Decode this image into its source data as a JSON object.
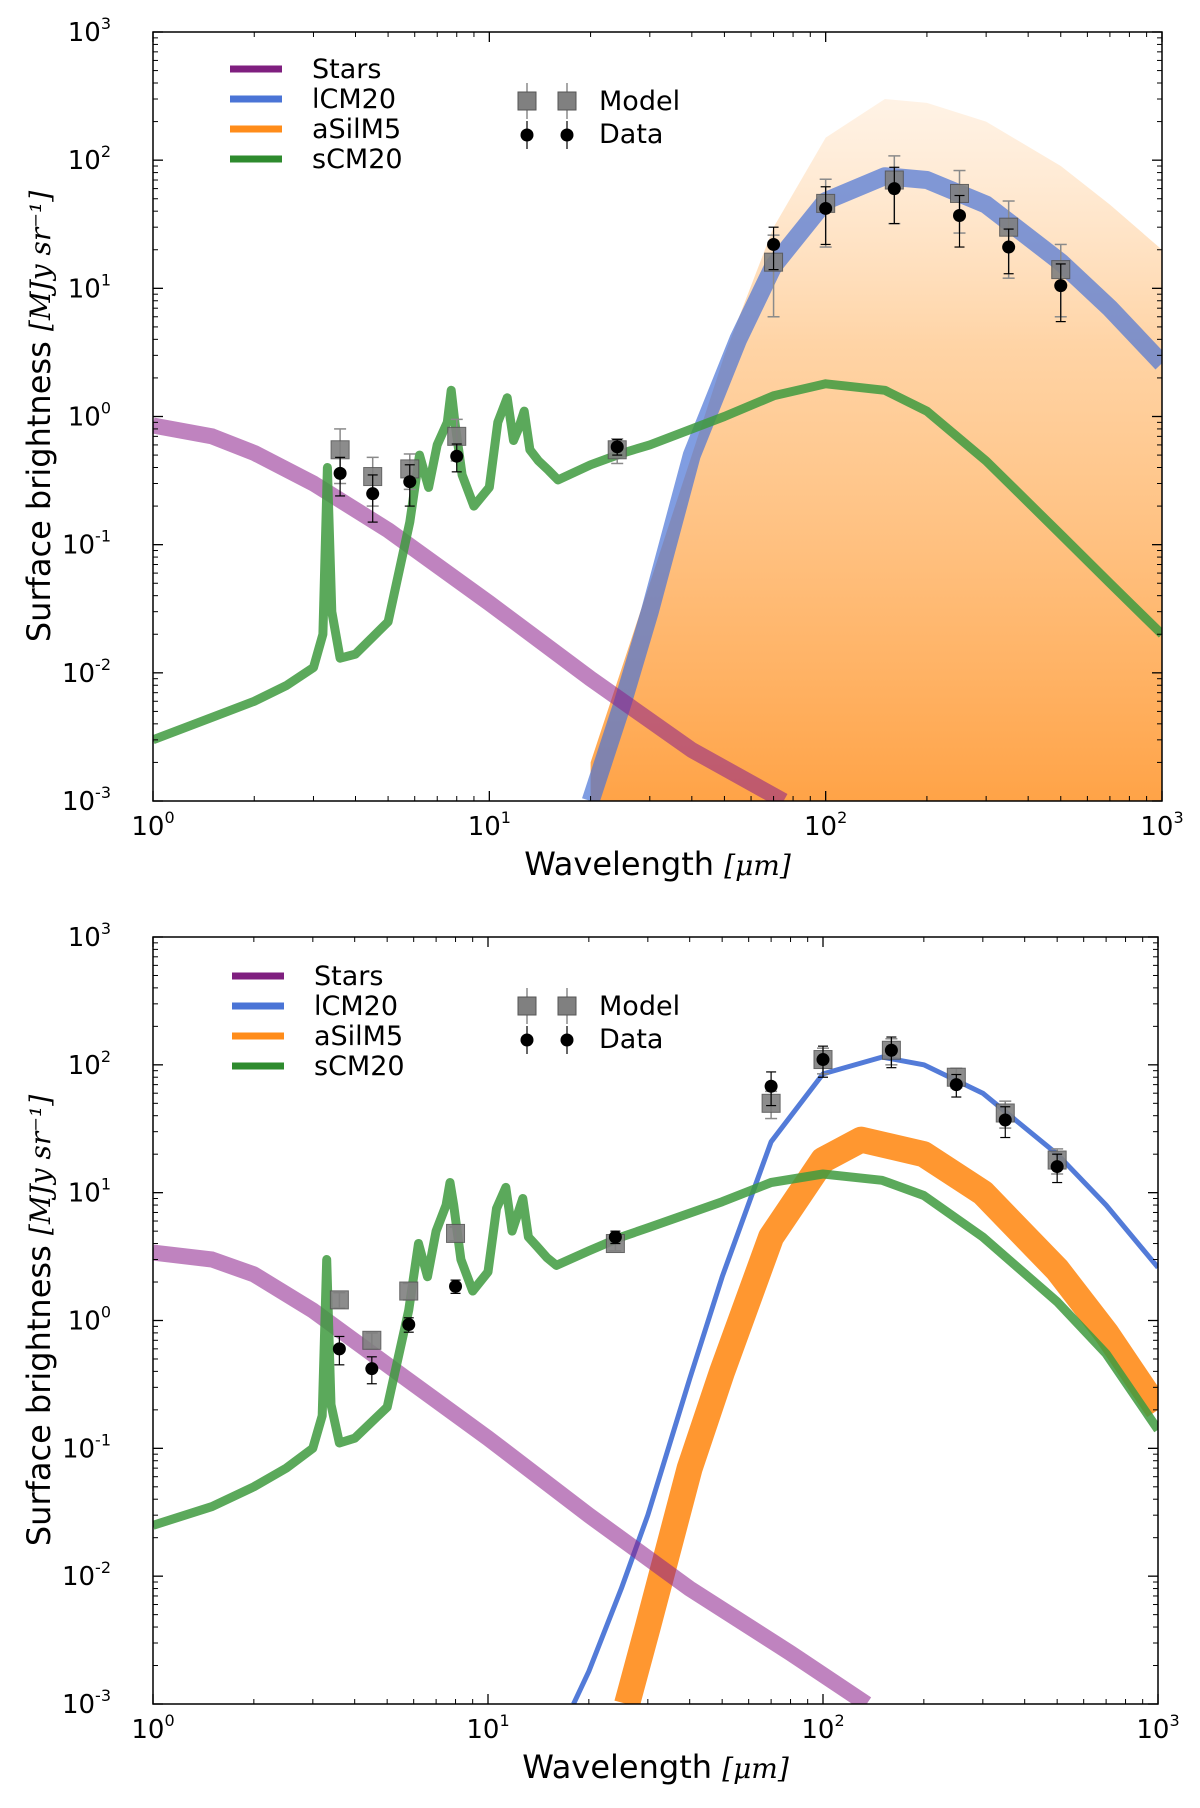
{
  "chart_data": [
    {
      "type": "line",
      "id": "top",
      "title": "",
      "xlabel": "Wavelength",
      "xunit": "[μm]",
      "ylabel": "Surface brightness",
      "yunit": "[MJy sr⁻¹]",
      "xscale": "log",
      "yscale": "log",
      "xlim": [
        1,
        1000
      ],
      "ylim": [
        0.001,
        1000
      ],
      "xticks": [
        {
          "base": "10",
          "exp": "0",
          "v": 1
        },
        {
          "base": "10",
          "exp": "1",
          "v": 10
        },
        {
          "base": "10",
          "exp": "2",
          "v": 100
        },
        {
          "base": "10",
          "exp": "3",
          "v": 1000
        }
      ],
      "yticks": [
        {
          "base": "10",
          "exp": "-3",
          "v": 0.001
        },
        {
          "base": "10",
          "exp": "-2",
          "v": 0.01
        },
        {
          "base": "10",
          "exp": "-1",
          "v": 0.1
        },
        {
          "base": "10",
          "exp": "0",
          "v": 1
        },
        {
          "base": "10",
          "exp": "1",
          "v": 10
        },
        {
          "base": "10",
          "exp": "2",
          "v": 100
        },
        {
          "base": "10",
          "exp": "3",
          "v": 1000
        }
      ],
      "legend_components": [
        {
          "name": "Stars",
          "color": "#7f1f7f"
        },
        {
          "name": "lCM20",
          "color": "#4a74d6"
        },
        {
          "name": "aSilM5",
          "color": "#ff8c1a"
        },
        {
          "name": "sCM20",
          "color": "#2e8b2e"
        }
      ],
      "legend_points": [
        {
          "name": "Model",
          "marker": "square"
        },
        {
          "name": "Data",
          "marker": "circle"
        }
      ],
      "series": [
        {
          "name": "Stars",
          "x": [
            1,
            1.5,
            2,
            3,
            5,
            10,
            20,
            40,
            75
          ],
          "y": [
            0.85,
            0.7,
            0.52,
            0.3,
            0.13,
            0.035,
            0.009,
            0.0025,
            0.001
          ]
        },
        {
          "name": "lCM20",
          "x": [
            20,
            25,
            30,
            40,
            55,
            70,
            100,
            150,
            200,
            300,
            500,
            700,
            1000
          ],
          "y": [
            0.001,
            0.006,
            0.03,
            0.5,
            4,
            15,
            48,
            75,
            70,
            45,
            16,
            7,
            2.6
          ]
        },
        {
          "name": "aSilM5",
          "x": [
            20,
            30,
            40,
            50,
            70,
            100,
            150,
            200,
            300,
            500,
            700,
            1000
          ],
          "y": [
            0.002,
            0.05,
            0.5,
            3,
            30,
            150,
            300,
            280,
            200,
            90,
            45,
            20
          ]
        },
        {
          "name": "sCM20",
          "x": [
            1,
            1.5,
            2,
            2.5,
            3,
            3.2,
            3.3,
            3.4,
            3.6,
            4,
            5,
            5.8,
            6.2,
            6.6,
            7.0,
            7.5,
            7.7,
            7.9,
            8.3,
            9,
            10,
            10.6,
            11.3,
            11.8,
            12.2,
            12.7,
            13.2,
            14,
            15,
            16,
            20,
            25,
            30,
            50,
            70,
            100,
            150,
            200,
            300,
            500,
            700,
            1000
          ],
          "y": [
            0.003,
            0.0045,
            0.006,
            0.008,
            0.011,
            0.02,
            0.4,
            0.03,
            0.013,
            0.014,
            0.025,
            0.15,
            0.5,
            0.28,
            0.6,
            0.9,
            1.6,
            0.9,
            0.35,
            0.2,
            0.28,
            0.9,
            1.4,
            0.65,
            0.8,
            1.1,
            0.55,
            0.45,
            0.38,
            0.32,
            0.42,
            0.52,
            0.6,
            1.0,
            1.45,
            1.8,
            1.6,
            1.1,
            0.45,
            0.12,
            0.05,
            0.02
          ]
        }
      ],
      "model_points": {
        "x": [
          3.6,
          4.5,
          5.8,
          8,
          24,
          70,
          100,
          160,
          250,
          350,
          500
        ],
        "y": [
          0.55,
          0.34,
          0.39,
          0.7,
          0.55,
          16,
          46,
          70,
          55,
          30,
          14
        ],
        "err": [
          0.25,
          0.14,
          0.12,
          0.25,
          0.12,
          10,
          25,
          38,
          28,
          18,
          8
        ]
      },
      "data_points": {
        "x": [
          3.6,
          4.5,
          5.8,
          8,
          24,
          70,
          100,
          160,
          250,
          350,
          500
        ],
        "y": [
          0.36,
          0.25,
          0.31,
          0.49,
          0.58,
          22,
          42,
          60,
          37,
          21,
          10.5
        ],
        "err": [
          0.12,
          0.1,
          0.11,
          0.12,
          0.08,
          8,
          20,
          28,
          16,
          8,
          5
        ]
      }
    },
    {
      "type": "line",
      "id": "bottom",
      "title": "",
      "xlabel": "Wavelength",
      "xunit": "[μm]",
      "ylabel": "Surface brightness",
      "yunit": "[MJy sr⁻¹]",
      "xscale": "log",
      "yscale": "log",
      "xlim": [
        1,
        1000
      ],
      "ylim": [
        0.001,
        1000
      ],
      "xticks": [
        {
          "base": "10",
          "exp": "0",
          "v": 1
        },
        {
          "base": "10",
          "exp": "1",
          "v": 10
        },
        {
          "base": "10",
          "exp": "2",
          "v": 100
        },
        {
          "base": "10",
          "exp": "3",
          "v": 1000
        }
      ],
      "yticks": [
        {
          "base": "10",
          "exp": "-3",
          "v": 0.001
        },
        {
          "base": "10",
          "exp": "-2",
          "v": 0.01
        },
        {
          "base": "10",
          "exp": "-1",
          "v": 0.1
        },
        {
          "base": "10",
          "exp": "0",
          "v": 1
        },
        {
          "base": "10",
          "exp": "1",
          "v": 10
        },
        {
          "base": "10",
          "exp": "2",
          "v": 100
        },
        {
          "base": "10",
          "exp": "3",
          "v": 1000
        }
      ],
      "legend_components": [
        {
          "name": "Stars",
          "color": "#7f1f7f"
        },
        {
          "name": "lCM20",
          "color": "#4a74d6"
        },
        {
          "name": "aSilM5",
          "color": "#ff8c1a"
        },
        {
          "name": "sCM20",
          "color": "#2e8b2e"
        }
      ],
      "legend_points": [
        {
          "name": "Model",
          "marker": "square"
        },
        {
          "name": "Data",
          "marker": "circle"
        }
      ],
      "series": [
        {
          "name": "Stars",
          "x": [
            1,
            1.5,
            2,
            3,
            5,
            10,
            20,
            40,
            80,
            135
          ],
          "y": [
            3.4,
            3.0,
            2.3,
            1.2,
            0.45,
            0.12,
            0.03,
            0.008,
            0.0025,
            0.001
          ]
        },
        {
          "name": "lCM20",
          "x": [
            18,
            20,
            25,
            30,
            40,
            50,
            70,
            100,
            150,
            200,
            300,
            500,
            700,
            1000
          ],
          "y": [
            0.001,
            0.0018,
            0.008,
            0.03,
            0.35,
            2.2,
            25,
            85,
            115,
            100,
            60,
            20,
            8,
            2.6
          ]
        },
        {
          "name": "aSilM5",
          "x": [
            26,
            30,
            40,
            50,
            70,
            100,
            130,
            200,
            300,
            500,
            700,
            1000
          ],
          "y": [
            0.001,
            0.004,
            0.07,
            0.4,
            4.5,
            18,
            26,
            20,
            10,
            2.5,
            0.8,
            0.2
          ]
        },
        {
          "name": "sCM20",
          "x": [
            1,
            1.5,
            2,
            2.5,
            3,
            3.2,
            3.3,
            3.4,
            3.6,
            4,
            5,
            5.8,
            6.2,
            6.6,
            7.0,
            7.5,
            7.7,
            7.9,
            8.3,
            9,
            10,
            10.6,
            11.3,
            11.8,
            12.2,
            12.7,
            13.2,
            14,
            15,
            16,
            20,
            25,
            30,
            50,
            70,
            100,
            150,
            200,
            300,
            500,
            700,
            1000
          ],
          "y": [
            0.025,
            0.035,
            0.05,
            0.07,
            0.1,
            0.18,
            3.0,
            0.22,
            0.11,
            0.12,
            0.21,
            1.2,
            4.0,
            2.2,
            5.0,
            8.0,
            12.0,
            8.0,
            3.0,
            1.7,
            2.4,
            7.5,
            11.0,
            5.0,
            6.5,
            9.0,
            4.5,
            3.8,
            3.1,
            2.7,
            3.5,
            4.5,
            5.3,
            8.5,
            12,
            14,
            12.5,
            9.5,
            4.5,
            1.4,
            0.55,
            0.14
          ]
        }
      ],
      "model_points": {
        "x": [
          3.6,
          4.5,
          5.8,
          8,
          24,
          70,
          100,
          160,
          250,
          350,
          500
        ],
        "y": [
          1.45,
          0.7,
          1.7,
          4.8,
          4.0,
          50,
          110,
          130,
          80,
          42,
          18
        ],
        "err": [
          0.2,
          0.1,
          0.25,
          0.6,
          0.5,
          12,
          25,
          30,
          14,
          10,
          4
        ]
      },
      "data_points": {
        "x": [
          3.6,
          4.5,
          5.8,
          8,
          24,
          70,
          100,
          160,
          250,
          350,
          500
        ],
        "y": [
          0.6,
          0.42,
          0.93,
          1.85,
          4.5,
          68,
          110,
          130,
          70,
          37,
          16
        ],
        "err": [
          0.15,
          0.1,
          0.12,
          0.22,
          0.5,
          20,
          30,
          35,
          14,
          10,
          4
        ]
      }
    }
  ],
  "colors": {
    "stars": "#8b1e8b",
    "lcm20": "#4a74d6",
    "asilm5": "#ff8c1a",
    "scm20": "#3e9a3e",
    "model": "#808080",
    "data": "#000000"
  }
}
